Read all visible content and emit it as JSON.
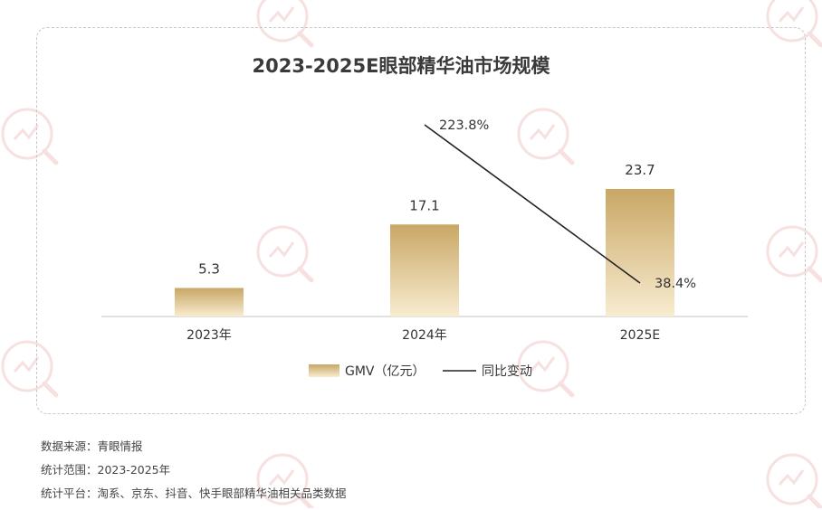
{
  "chart_data": {
    "type": "bar",
    "title": "2023-2025E眼部精华油市场规模",
    "categories": [
      "2023年",
      "2024年",
      "2025E"
    ],
    "series": [
      {
        "name": "GMV（亿元）",
        "type": "bar",
        "values": [
          5.3,
          17.1,
          23.7
        ]
      },
      {
        "name": "同比变动",
        "type": "line",
        "values": [
          null,
          223.8,
          38.4
        ],
        "labels": [
          "",
          "223.8%",
          "38.4%"
        ]
      }
    ],
    "bar_value_labels": [
      "5.3",
      "17.1",
      "23.7"
    ],
    "legend_position": "bottom",
    "grid": false,
    "colors": {
      "bar_top": "#c9a765",
      "bar_bottom": "#f8ecd0",
      "line": "#222222",
      "axis": "#cfcfcf"
    }
  },
  "notes": {
    "source": "数据来源：青眼情报",
    "range": "统计范围：2023-2025年",
    "platform": "统计平台：淘系、京东、抖音、快手眼部精华油相关品类数据"
  },
  "watermark": {
    "text": "青眼情报",
    "icon": "magnifier-chart-icon",
    "color": "#e9a8a8"
  }
}
